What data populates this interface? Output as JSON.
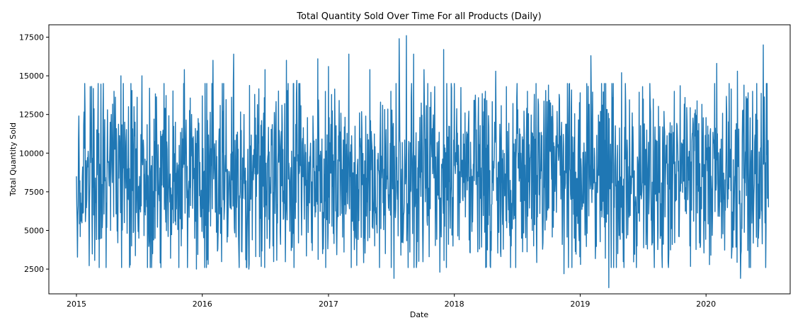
{
  "colors": {
    "series": "#1f77b4",
    "axis": "#000000",
    "background": "#ffffff"
  },
  "chart_data": {
    "type": "line",
    "title": "Total Quantity Sold Over Time For all Products (Daily)",
    "xlabel": "Date",
    "ylabel": "Total Quantity Sold",
    "xlim": [
      "2014-10-13",
      "2020-09-01"
    ],
    "ylim": [
      900,
      18300
    ],
    "x_ticks": [
      {
        "value": "2015-01-01",
        "label": "2015"
      },
      {
        "value": "2016-01-01",
        "label": "2016"
      },
      {
        "value": "2017-01-01",
        "label": "2017"
      },
      {
        "value": "2018-01-01",
        "label": "2018"
      },
      {
        "value": "2019-01-01",
        "label": "2019"
      },
      {
        "value": "2020-01-01",
        "label": "2020"
      }
    ],
    "y_ticks": [
      {
        "value": 2500,
        "label": "2500"
      },
      {
        "value": 5000,
        "label": "5000"
      },
      {
        "value": 7500,
        "label": "7500"
      },
      {
        "value": 10000,
        "label": "10000"
      },
      {
        "value": 12500,
        "label": "12500"
      },
      {
        "value": 15000,
        "label": "15000"
      },
      {
        "value": 17500,
        "label": "17500"
      }
    ],
    "grid": false,
    "legend": "none",
    "series": [
      {
        "x_start": "2015-01-01",
        "x_end": "2020-06-30",
        "frequency": "daily",
        "points": [
          [
            "2015-01-01",
            8500
          ],
          [
            "2015-01-08",
            12400
          ],
          [
            "2015-01-15",
            5600
          ],
          [
            "2015-01-22",
            11800
          ],
          [
            "2015-02-01",
            9000
          ],
          [
            "2015-02-10",
            14300
          ],
          [
            "2015-02-20",
            6000
          ],
          [
            "2015-03-01",
            11500
          ],
          [
            "2015-03-15",
            4500
          ],
          [
            "2015-04-01",
            12800
          ],
          [
            "2015-04-10",
            5000
          ],
          [
            "2015-04-20",
            14000
          ],
          [
            "2015-05-01",
            4200
          ],
          [
            "2015-05-10",
            15000
          ],
          [
            "2015-05-20",
            5500
          ],
          [
            "2015-06-01",
            13000
          ],
          [
            "2015-06-10",
            4000
          ],
          [
            "2015-06-20",
            12000
          ],
          [
            "2015-07-01",
            4500
          ],
          [
            "2015-07-10",
            15000
          ],
          [
            "2015-07-20",
            6000
          ],
          [
            "2015-08-01",
            14200
          ],
          [
            "2015-08-10",
            3500
          ],
          [
            "2015-08-20",
            11500
          ],
          [
            "2015-09-01",
            2900
          ],
          [
            "2015-09-15",
            12900
          ],
          [
            "2015-10-01",
            3200
          ],
          [
            "2015-10-15",
            12000
          ],
          [
            "2015-11-01",
            4000
          ],
          [
            "2015-11-10",
            15400
          ],
          [
            "2015-11-20",
            5000
          ],
          [
            "2015-12-01",
            12500
          ],
          [
            "2015-12-15",
            2500
          ],
          [
            "2016-01-01",
            13700
          ],
          [
            "2016-01-15",
            3100
          ],
          [
            "2016-02-01",
            16000
          ],
          [
            "2016-02-15",
            3800
          ],
          [
            "2016-03-01",
            12700
          ],
          [
            "2016-03-15",
            4600
          ],
          [
            "2016-04-01",
            16400
          ],
          [
            "2016-04-15",
            4700
          ],
          [
            "2016-05-01",
            12500
          ],
          [
            "2016-05-15",
            2500
          ],
          [
            "2016-06-01",
            13800
          ],
          [
            "2016-06-15",
            3300
          ],
          [
            "2016-07-01",
            15400
          ],
          [
            "2016-07-15",
            4500
          ],
          [
            "2016-08-01",
            12400
          ],
          [
            "2016-08-15",
            4100
          ],
          [
            "2016-09-01",
            16000
          ],
          [
            "2016-09-15",
            3700
          ],
          [
            "2016-10-01",
            14700
          ],
          [
            "2016-10-15",
            4700
          ],
          [
            "2016-11-01",
            12300
          ],
          [
            "2016-11-15",
            3700
          ],
          [
            "2016-12-01",
            16100
          ],
          [
            "2016-12-15",
            3500
          ],
          [
            "2017-01-01",
            15600
          ],
          [
            "2017-01-15",
            4800
          ],
          [
            "2017-02-01",
            13400
          ],
          [
            "2017-02-15",
            3600
          ],
          [
            "2017-03-01",
            16400
          ],
          [
            "2017-03-15",
            5000
          ],
          [
            "2017-04-01",
            12600
          ],
          [
            "2017-04-15",
            4500
          ],
          [
            "2017-05-01",
            15400
          ],
          [
            "2017-05-15",
            4000
          ],
          [
            "2017-06-01",
            13300
          ],
          [
            "2017-06-15",
            3500
          ],
          [
            "2017-07-01",
            14000
          ],
          [
            "2017-07-10",
            1900
          ],
          [
            "2017-07-25",
            17400
          ],
          [
            "2017-08-05",
            4200
          ],
          [
            "2017-08-15",
            17600
          ],
          [
            "2017-08-25",
            3600
          ],
          [
            "2017-09-05",
            16400
          ],
          [
            "2017-09-20",
            3000
          ],
          [
            "2017-10-05",
            15400
          ],
          [
            "2017-10-20",
            3300
          ],
          [
            "2017-11-05",
            14300
          ],
          [
            "2017-11-20",
            2300
          ],
          [
            "2017-12-01",
            16700
          ],
          [
            "2017-12-15",
            4100
          ],
          [
            "2018-01-01",
            14500
          ],
          [
            "2018-01-15",
            4400
          ],
          [
            "2018-02-01",
            12600
          ],
          [
            "2018-02-15",
            3600
          ],
          [
            "2018-03-01",
            13400
          ],
          [
            "2018-03-15",
            3800
          ],
          [
            "2018-04-01",
            14000
          ],
          [
            "2018-04-15",
            2700
          ],
          [
            "2018-05-01",
            15300
          ],
          [
            "2018-05-15",
            3600
          ],
          [
            "2018-06-01",
            14300
          ],
          [
            "2018-06-15",
            4000
          ],
          [
            "2018-07-01",
            13600
          ],
          [
            "2018-07-15",
            4500
          ],
          [
            "2018-08-01",
            14000
          ],
          [
            "2018-08-15",
            5000
          ],
          [
            "2018-09-01",
            13500
          ],
          [
            "2018-09-15",
            4200
          ],
          [
            "2018-10-01",
            14400
          ],
          [
            "2018-10-15",
            5200
          ],
          [
            "2018-11-01",
            13800
          ],
          [
            "2018-11-15",
            2200
          ],
          [
            "2018-12-01",
            14500
          ],
          [
            "2018-12-15",
            4500
          ],
          [
            "2019-01-01",
            13900
          ],
          [
            "2019-01-15",
            4700
          ],
          [
            "2019-02-01",
            16300
          ],
          [
            "2019-02-15",
            4600
          ],
          [
            "2019-03-01",
            12700
          ],
          [
            "2019-03-15",
            3200
          ],
          [
            "2019-03-25",
            1300
          ],
          [
            "2019-04-05",
            13600
          ],
          [
            "2019-04-20",
            3500
          ],
          [
            "2019-05-01",
            15200
          ],
          [
            "2019-05-15",
            4500
          ],
          [
            "2019-06-01",
            12600
          ],
          [
            "2019-06-15",
            4000
          ],
          [
            "2019-07-01",
            14300
          ],
          [
            "2019-07-15",
            3800
          ],
          [
            "2019-08-01",
            13500
          ],
          [
            "2019-08-15",
            5000
          ],
          [
            "2019-09-01",
            12700
          ],
          [
            "2019-09-15",
            3500
          ],
          [
            "2019-10-01",
            14000
          ],
          [
            "2019-10-15",
            4600
          ],
          [
            "2019-11-01",
            13600
          ],
          [
            "2019-11-15",
            4000
          ],
          [
            "2019-12-01",
            12800
          ],
          [
            "2019-12-15",
            3900
          ],
          [
            "2020-01-01",
            12300
          ],
          [
            "2020-01-15",
            3400
          ],
          [
            "2020-02-01",
            15800
          ],
          [
            "2020-02-15",
            4500
          ],
          [
            "2020-03-01",
            12700
          ],
          [
            "2020-03-15",
            3200
          ],
          [
            "2020-04-01",
            15300
          ],
          [
            "2020-04-10",
            1900
          ],
          [
            "2020-04-20",
            14400
          ],
          [
            "2020-05-01",
            3700
          ],
          [
            "2020-05-15",
            14000
          ],
          [
            "2020-06-01",
            4500
          ],
          [
            "2020-06-15",
            17000
          ],
          [
            "2020-06-22",
            2600
          ],
          [
            "2020-06-30",
            6500
          ]
        ],
        "baseline": 8500,
        "typical_range": [
          5500,
          11500
        ]
      }
    ]
  }
}
